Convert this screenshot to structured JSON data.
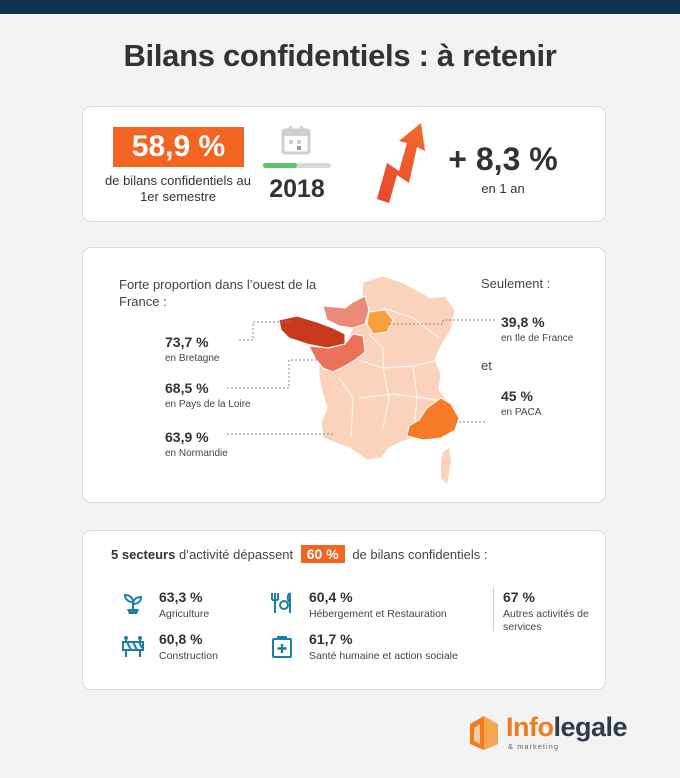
{
  "title": "Bilans confidentiels : à retenir",
  "summary": {
    "share": "58,9 %",
    "share_desc": "de bilans confidentiels au 1er semestre",
    "year": "2018",
    "year_progress": 0.5,
    "growth": "+ 8,3 %",
    "growth_desc": "en 1 an"
  },
  "map": {
    "intro": "Forte proportion dans l’ouest de la France :",
    "right_intro": "Seulement :",
    "et": "et",
    "regions": [
      {
        "value": "73,7 %",
        "label": "en Bretagne",
        "color": "#c9391d"
      },
      {
        "value": "68,5 %",
        "label": "en Pays de la Loire",
        "color": "#e8725a"
      },
      {
        "value": "63,9 %",
        "label": "en Normandie",
        "color": "#ec8a78"
      },
      {
        "value": "39,8  %",
        "label": "en Ile de France",
        "color": "#f9a03c"
      },
      {
        "value": "45 %",
        "label": "en PACA",
        "color": "#f57b28"
      }
    ],
    "base_color": "#fbd3bd"
  },
  "sectors": {
    "head_bold": "5 secteurs",
    "head_mid": "d’activité dépassent",
    "head_badge": "60 %",
    "head_end": "de bilans confidentiels :",
    "items": [
      {
        "value": "63,3 %",
        "label": "Agriculture",
        "icon": "plant-icon"
      },
      {
        "value": "60,4 %",
        "label": "Hébergement et Restauration",
        "icon": "dining-icon"
      },
      {
        "value": "60,8 %",
        "label": "Construction",
        "icon": "barrier-icon"
      },
      {
        "value": "61,7 %",
        "label": "Santé humaine et action sociale",
        "icon": "medical-kit-icon"
      },
      {
        "value": "67 %",
        "label": "Autres activités de services"
      }
    ],
    "icon_color": "#1f7fa1"
  },
  "logo": {
    "part1": "Info",
    "part2": "legale",
    "tagline": "& marketing"
  }
}
